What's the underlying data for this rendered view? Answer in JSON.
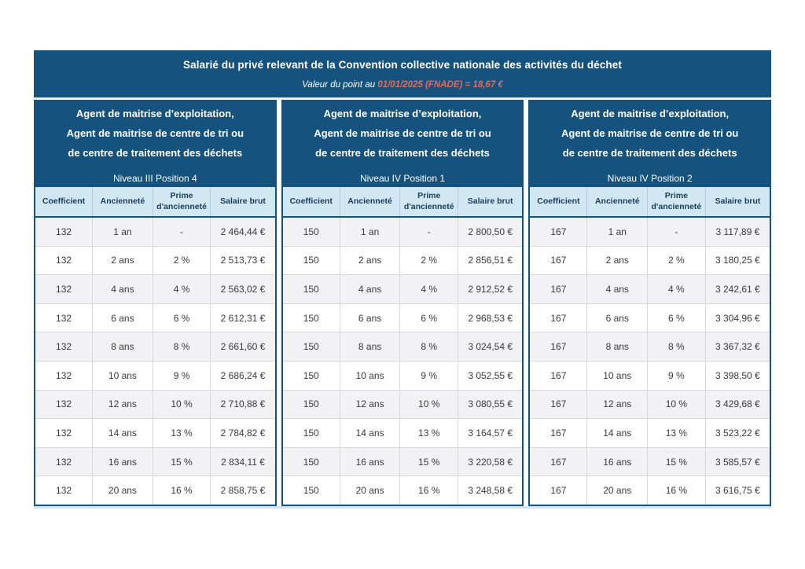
{
  "banner": {
    "title": "Salarié du privé relevant de la Convention collective nationale des activités du déchet",
    "point_value_prefix": "Valeur du point au ",
    "point_value_highlight": "01/01/2025 (FNADE) = 18,67 €"
  },
  "colors": {
    "banner_blue": "#15527d",
    "highlight_red": "#e8695a",
    "header_cell_blue": "#d2e7f4",
    "row_alt_gray": "#f2f2f4"
  },
  "chart_data": {
    "type": "table",
    "title": "Salarié du privé relevant de la Convention collective nationale des activités du déchet",
    "subtitle": "Valeur du point au 01/01/2025 (FNADE) = 18,67 €"
  },
  "sections": [
    {
      "header_lines": [
        "Agent de maitrise d’exploitation,",
        "Agent de maitrise de centre de tri ou",
        "de centre de traitement des déchets"
      ],
      "level": "Niveau III Position 4",
      "columns": [
        "Coefficient",
        "Ancienneté",
        "Prime d'ancienneté",
        "Salaire brut"
      ],
      "rows": [
        [
          "132",
          "1 an",
          "-",
          "2 464,44 €"
        ],
        [
          "132",
          "2 ans",
          "2 %",
          "2 513,73 €"
        ],
        [
          "132",
          "4 ans",
          "4 %",
          "2 563,02 €"
        ],
        [
          "132",
          "6 ans",
          "6 %",
          "2 612,31 €"
        ],
        [
          "132",
          "8 ans",
          "8 %",
          "2 661,60 €"
        ],
        [
          "132",
          "10 ans",
          "9 %",
          "2 686,24 €"
        ],
        [
          "132",
          "12 ans",
          "10 %",
          "2 710,88 €"
        ],
        [
          "132",
          "14 ans",
          "13 %",
          "2 784,82 €"
        ],
        [
          "132",
          "16 ans",
          "15 %",
          "2 834,11 €"
        ],
        [
          "132",
          "20 ans",
          "16 %",
          "2 858,75 €"
        ]
      ]
    },
    {
      "header_lines": [
        "Agent de maitrise d’exploitation,",
        "Agent de maitrise de centre de tri ou",
        "de centre de traitement des déchets"
      ],
      "level": "Niveau IV Position 1",
      "columns": [
        "Coefficient",
        "Ancienneté",
        "Prime d'ancienneté",
        "Salaire brut"
      ],
      "rows": [
        [
          "150",
          "1 an",
          "-",
          "2 800,50 €"
        ],
        [
          "150",
          "2 ans",
          "2 %",
          "2 856,51 €"
        ],
        [
          "150",
          "4 ans",
          "4 %",
          "2 912,52 €"
        ],
        [
          "150",
          "6 ans",
          "6 %",
          "2 968,53 €"
        ],
        [
          "150",
          "8 ans",
          "8 %",
          "3 024,54 €"
        ],
        [
          "150",
          "10 ans",
          "9 %",
          "3 052,55 €"
        ],
        [
          "150",
          "12 ans",
          "10 %",
          "3 080,55 €"
        ],
        [
          "150",
          "14 ans",
          "13 %",
          "3 164,57 €"
        ],
        [
          "150",
          "16 ans",
          "15 %",
          "3 220,58 €"
        ],
        [
          "150",
          "20 ans",
          "16 %",
          "3 248,58 €"
        ]
      ]
    },
    {
      "header_lines": [
        "Agent de maitrise d’exploitation,",
        "Agent de maitrise de centre de tri ou",
        "de centre de traitement des déchets"
      ],
      "level": "Niveau IV Position 2",
      "columns": [
        "Coefficient",
        "Ancienneté",
        "Prime d'ancienneté",
        "Salaire brut"
      ],
      "rows": [
        [
          "167",
          "1 an",
          "-",
          "3 117,89 €"
        ],
        [
          "167",
          "2 ans",
          "2 %",
          "3 180,25 €"
        ],
        [
          "167",
          "4 ans",
          "4 %",
          "3 242,61 €"
        ],
        [
          "167",
          "6 ans",
          "6 %",
          "3 304,96 €"
        ],
        [
          "167",
          "8 ans",
          "8 %",
          "3 367,32 €"
        ],
        [
          "167",
          "10 ans",
          "9 %",
          "3 398,50 €"
        ],
        [
          "167",
          "12 ans",
          "10 %",
          "3 429,68 €"
        ],
        [
          "167",
          "14 ans",
          "13 %",
          "3 523,22 €"
        ],
        [
          "167",
          "16 ans",
          "15 %",
          "3 585,57 €"
        ],
        [
          "167",
          "20 ans",
          "16 %",
          "3 616,75 €"
        ]
      ]
    }
  ]
}
